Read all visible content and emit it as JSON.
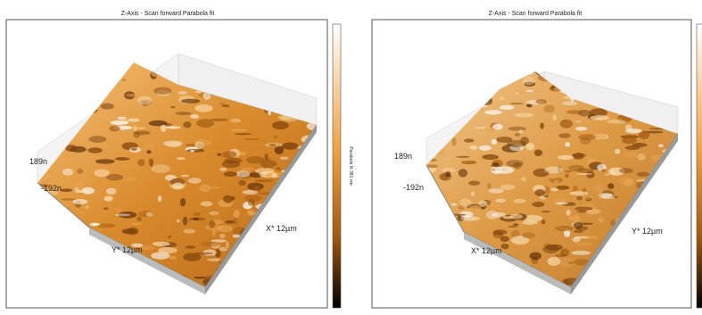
{
  "panels": [
    {
      "title": "Z-Axis - Scan forward   Parabola fit",
      "z_max_label": "189n",
      "z_min_label": "-192n",
      "y_axis_label": "Y* 12µm",
      "x_axis_label": "X* 12µm",
      "colorbar_label": "Parabola fit 381 nm"
    },
    {
      "title": "Z-Axis - Scan forward   Parabola fit",
      "z_max_label": "189n",
      "z_min_label": "-192n",
      "x_axis_label": "X* 12µm",
      "y_axis_label": "Y* 12µm"
    }
  ]
}
